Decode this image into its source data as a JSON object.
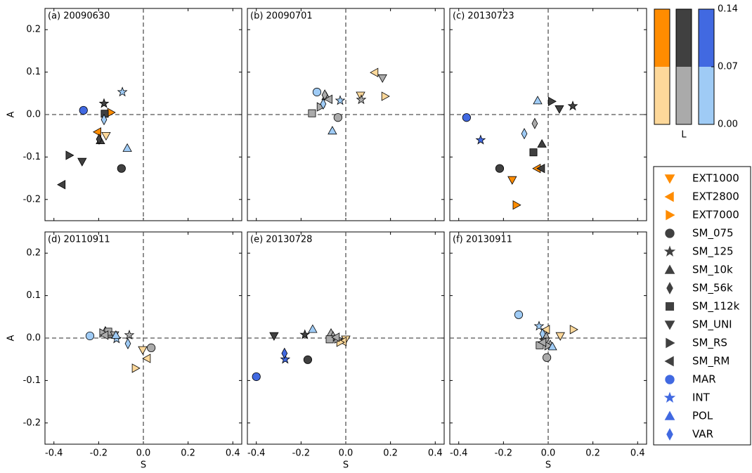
{
  "chart_data": [
    {
      "type": "scatter",
      "title": "(a) 20090630",
      "ylabel": "A",
      "xlim": [
        -0.44,
        0.44
      ],
      "ylim": [
        -0.25,
        0.25
      ],
      "xticks": [
        -0.4,
        -0.2,
        {
          "value": 0,
          "label": "0.0"
        },
        0.2,
        0.4
      ],
      "yticks": [
        -0.2,
        -0.1,
        {
          "value": 0,
          "label": "0.0"
        },
        0.1,
        0.2
      ],
      "x": [
        -0.167,
        -0.205,
        -0.145,
        -0.098,
        -0.176,
        -0.192,
        -0.198,
        -0.173,
        -0.274,
        -0.331,
        -0.365,
        -0.268,
        -0.094,
        -0.072,
        -0.176
      ],
      "y": [
        -0.05,
        -0.041,
        0.005,
        -0.127,
        0.026,
        -0.061,
        -0.058,
        0.002,
        -0.111,
        -0.096,
        -0.165,
        0.01,
        0.053,
        -0.079,
        -0.012
      ],
      "colors": [
        "#fdd89a",
        "#ff8c00",
        "#ff8c00",
        "#404040",
        "#404040",
        "#404040",
        "#404040",
        "#404040",
        "#404040",
        "#404040",
        "#404040",
        "#4169e1",
        "#9fcbf5",
        "#9fcbf5",
        "#9fcbf5"
      ]
    },
    {
      "type": "scatter",
      "title": "(b) 20090701",
      "xlim": [
        -0.44,
        0.44
      ],
      "ylim": [
        -0.25,
        0.25
      ],
      "xticks": [
        -0.4,
        -0.2,
        {
          "value": 0,
          "label": "0.0"
        },
        0.2,
        0.4
      ],
      "yticks": [
        -0.2,
        -0.1,
        {
          "value": 0,
          "label": "0.0"
        },
        0.1,
        0.2
      ],
      "x": [
        0.066,
        0.129,
        0.176,
        -0.035,
        0.069,
        -0.088,
        -0.094,
        -0.151,
        0.164,
        -0.113,
        -0.076,
        -0.129,
        -0.025,
        -0.06,
        -0.101
      ],
      "y": [
        0.045,
        0.099,
        0.043,
        -0.007,
        0.035,
        0.043,
        0.046,
        0.003,
        0.086,
        0.018,
        0.036,
        0.053,
        0.033,
        -0.038,
        0.025
      ],
      "colors": [
        "#fdd89a",
        "#fdd89a",
        "#fdd89a",
        "#aaaaaa",
        "#aaaaaa",
        "#aaaaaa",
        "#aaaaaa",
        "#aaaaaa",
        "#aaaaaa",
        "#aaaaaa",
        "#aaaaaa",
        "#9fcbf5",
        "#9fcbf5",
        "#9fcbf5",
        "#9fcbf5"
      ]
    },
    {
      "type": "scatter",
      "title": "(c) 20130723",
      "xlim": [
        -0.44,
        0.44
      ],
      "ylim": [
        -0.25,
        0.25
      ],
      "xticks": [
        -0.4,
        -0.2,
        {
          "value": 0,
          "label": "0.0"
        },
        0.2,
        0.4
      ],
      "yticks": [
        -0.2,
        -0.1,
        {
          "value": 0,
          "label": "0.0"
        },
        0.1,
        0.2
      ],
      "x": [
        -0.161,
        -0.05,
        -0.142,
        -0.217,
        0.11,
        -0.028,
        -0.06,
        -0.066,
        0.05,
        0.016,
        -0.031,
        -0.365,
        -0.302,
        -0.047,
        -0.107
      ],
      "y": [
        -0.154,
        -0.127,
        -0.213,
        -0.127,
        0.02,
        -0.069,
        -0.021,
        -0.089,
        0.013,
        0.031,
        -0.127,
        -0.007,
        -0.06,
        0.033,
        -0.045
      ],
      "colors": [
        "#ff8c00",
        "#ff8c00",
        "#ff8c00",
        "#404040",
        "#404040",
        "#404040",
        "#aaaaaa",
        "#404040",
        "#404040",
        "#404040",
        "#404040",
        "#4169e1",
        "#4169e1",
        "#9fcbf5",
        "#9fcbf5"
      ]
    },
    {
      "type": "scatter",
      "title": "(d) 20110911",
      "ylabel": "A",
      "xlabel": "S",
      "xlim": [
        -0.44,
        0.44
      ],
      "ylim": [
        -0.25,
        0.25
      ],
      "xticks": [
        -0.4,
        -0.2,
        {
          "value": 0,
          "label": "0.0"
        },
        0.2,
        0.4
      ],
      "yticks": [
        -0.2,
        -0.1,
        {
          "value": 0,
          "label": "0.0"
        },
        0.1,
        0.2
      ],
      "x": [
        -0.003,
        0.016,
        -0.035,
        0.035,
        -0.063,
        -0.145,
        -0.17,
        -0.157,
        -0.129,
        -0.18,
        -0.173,
        -0.239,
        -0.12,
        -0.123,
        -0.069
      ],
      "y": [
        -0.028,
        -0.048,
        -0.071,
        -0.023,
        0.007,
        0.01,
        0.015,
        0.015,
        0.007,
        0.012,
        0.007,
        0.005,
        -0.002,
        0.007,
        -0.013
      ],
      "colors": [
        "#fdd89a",
        "#fdd89a",
        "#fdd89a",
        "#aaaaaa",
        "#aaaaaa",
        "#aaaaaa",
        "#aaaaaa",
        "#aaaaaa",
        "#aaaaaa",
        "#aaaaaa",
        "#aaaaaa",
        "#9fcbf5",
        "#9fcbf5",
        "#9fcbf5",
        "#9fcbf5"
      ]
    },
    {
      "type": "scatter",
      "title": "(e) 20130728",
      "xlabel": "S",
      "xlim": [
        -0.44,
        0.44
      ],
      "ylim": [
        -0.25,
        0.25
      ],
      "xticks": [
        -0.4,
        -0.2,
        {
          "value": 0,
          "label": "0.0"
        },
        0.2,
        0.4
      ],
      "yticks": [
        -0.2,
        -0.1,
        {
          "value": 0,
          "label": "0.0"
        },
        0.1,
        0.2
      ],
      "x": [
        0,
        -0.013,
        -0.025,
        -0.17,
        -0.183,
        -0.066,
        -0.057,
        -0.072,
        -0.321,
        -0.035,
        -0.044,
        -0.4,
        -0.271,
        -0.148,
        -0.274
      ],
      "y": [
        -0.003,
        -0.008,
        -0.01,
        -0.051,
        0.008,
        0.012,
        0.003,
        -0.003,
        0.005,
        -0.002,
        0.002,
        -0.091,
        -0.05,
        0.021,
        -0.036
      ],
      "colors": [
        "#fdd89a",
        "#fdd89a",
        "#fdd89a",
        "#404040",
        "#404040",
        "#aaaaaa",
        "#aaaaaa",
        "#aaaaaa",
        "#404040",
        "#aaaaaa",
        "#aaaaaa",
        "#4169e1",
        "#4169e1",
        "#9fcbf5",
        "#4169e1"
      ]
    },
    {
      "type": "scatter",
      "title": "(f) 20130911",
      "xlabel": "S",
      "xlim": [
        -0.44,
        0.44
      ],
      "ylim": [
        -0.25,
        0.25
      ],
      "xticks": [
        -0.4,
        -0.2,
        {
          "value": 0,
          "label": "0.0"
        },
        0.2,
        0.4
      ],
      "yticks": [
        -0.2,
        -0.1,
        {
          "value": 0,
          "label": "0.0"
        },
        0.1,
        0.2
      ],
      "x": [
        0.054,
        -0.009,
        0.113,
        -0.006,
        -0.019,
        0.009,
        -0.009,
        -0.038,
        -0.013,
        0,
        -0.025,
        -0.132,
        -0.041,
        0.019,
        -0.025
      ],
      "y": [
        0.005,
        0.02,
        0.02,
        -0.046,
        -0.005,
        -0.015,
        0.002,
        -0.017,
        -0.008,
        -0.018,
        -0.01,
        0.055,
        0.028,
        -0.02,
        0.01
      ],
      "colors": [
        "#fdd89a",
        "#fdd89a",
        "#fdd89a",
        "#aaaaaa",
        "#aaaaaa",
        "#aaaaaa",
        "#aaaaaa",
        "#aaaaaa",
        "#aaaaaa",
        "#aaaaaa",
        "#aaaaaa",
        "#9fcbf5",
        "#9fcbf5",
        "#9fcbf5",
        "#9fcbf5"
      ]
    },
    {
      "type": "colorbar",
      "label": "L",
      "ylim": [
        0,
        0.14
      ],
      "yticks": [
        {
          "value": 0,
          "label": "0.00"
        },
        {
          "value": 0.07,
          "label": "0.07"
        },
        {
          "value": 0.14,
          "label": "0.14"
        }
      ],
      "colors": [
        [
          "#fdd89a",
          "#ff8c00"
        ],
        [
          "#aaaaaa",
          "#404040"
        ],
        [
          "#9fcbf5",
          "#4169e1"
        ]
      ]
    }
  ],
  "legend": {
    "entries": [
      {
        "name": "EXT1000",
        "marker": "v",
        "color": "#ff8c00"
      },
      {
        "name": "EXT2800",
        "marker": "<",
        "color": "#ff8c00"
      },
      {
        "name": "EXT7000",
        "marker": ">",
        "color": "#ff8c00"
      },
      {
        "name": "SM_075",
        "marker": "o",
        "color": "#404040"
      },
      {
        "name": "SM_125",
        "marker": "*",
        "color": "#404040"
      },
      {
        "name": "SM_10k",
        "marker": "^",
        "color": "#404040"
      },
      {
        "name": "SM_56k",
        "marker": "d",
        "color": "#404040"
      },
      {
        "name": "SM_112k",
        "marker": "s",
        "color": "#404040"
      },
      {
        "name": "SM_UNI",
        "marker": "v",
        "color": "#404040"
      },
      {
        "name": "SM_RS",
        "marker": ">",
        "color": "#404040"
      },
      {
        "name": "SM_RM",
        "marker": "<",
        "color": "#404040"
      },
      {
        "name": "MAR",
        "marker": "o",
        "color": "#4169e1"
      },
      {
        "name": "INT",
        "marker": "*",
        "color": "#4169e1"
      },
      {
        "name": "POL",
        "marker": "^",
        "color": "#4169e1"
      },
      {
        "name": "VAR",
        "marker": "d",
        "color": "#4169e1"
      }
    ]
  }
}
